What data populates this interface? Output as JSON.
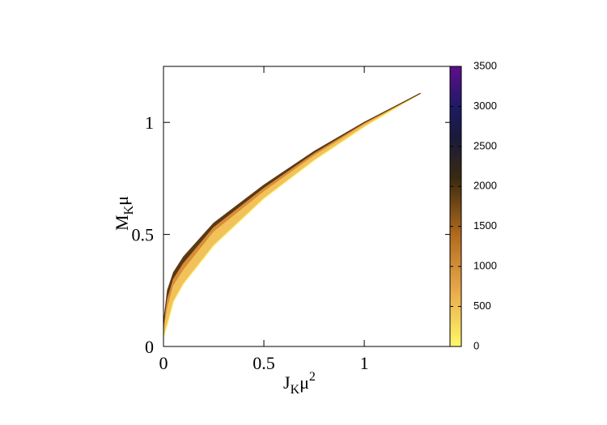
{
  "chart_data": {
    "type": "band",
    "xlabel": [
      "J",
      "K",
      "μ",
      "2"
    ],
    "ylabel": [
      "M",
      "K",
      "μ"
    ],
    "x": [
      0,
      0.02,
      0.05,
      0.1,
      0.25,
      0.5,
      0.75,
      1.0,
      1.28
    ],
    "series": [
      {
        "z": 0,
        "color": "#fff176",
        "values": [
          0.04,
          0.1,
          0.2,
          0.28,
          0.45,
          0.66,
          0.83,
          0.98,
          1.13
        ]
      },
      {
        "z": 500,
        "color": "#f2c25a",
        "values": [
          0.06,
          0.17,
          0.27,
          0.34,
          0.51,
          0.69,
          0.85,
          0.99,
          1.13
        ]
      },
      {
        "z": 1000,
        "color": "#d98d38",
        "values": [
          0.08,
          0.21,
          0.3,
          0.37,
          0.53,
          0.705,
          0.86,
          0.995,
          1.13
        ]
      },
      {
        "z": 2000,
        "color": "#5a3a14",
        "values": [
          0.1,
          0.25,
          0.33,
          0.4,
          0.55,
          0.72,
          0.87,
          1.0,
          1.13
        ]
      }
    ],
    "xlim": [
      0,
      1.435
    ],
    "xticks": [
      0,
      0.5,
      1
    ],
    "ylim": [
      0,
      1.25
    ],
    "yticks": [
      0,
      0.5,
      1
    ],
    "cblim": [
      0,
      3500
    ],
    "cbticks": [
      0,
      500,
      1000,
      1500,
      2000,
      2500,
      3000,
      3500
    ],
    "colormap": [
      {
        "value": 0,
        "color": "#fff86a"
      },
      {
        "value": 700,
        "color": "#e9a94a"
      },
      {
        "value": 1400,
        "color": "#b06a1e"
      },
      {
        "value": 2100,
        "color": "#3a2a10"
      },
      {
        "value": 2600,
        "color": "#1a1a3a"
      },
      {
        "value": 3000,
        "color": "#1e1a66"
      },
      {
        "value": 3500,
        "color": "#5e0f8a"
      }
    ]
  }
}
